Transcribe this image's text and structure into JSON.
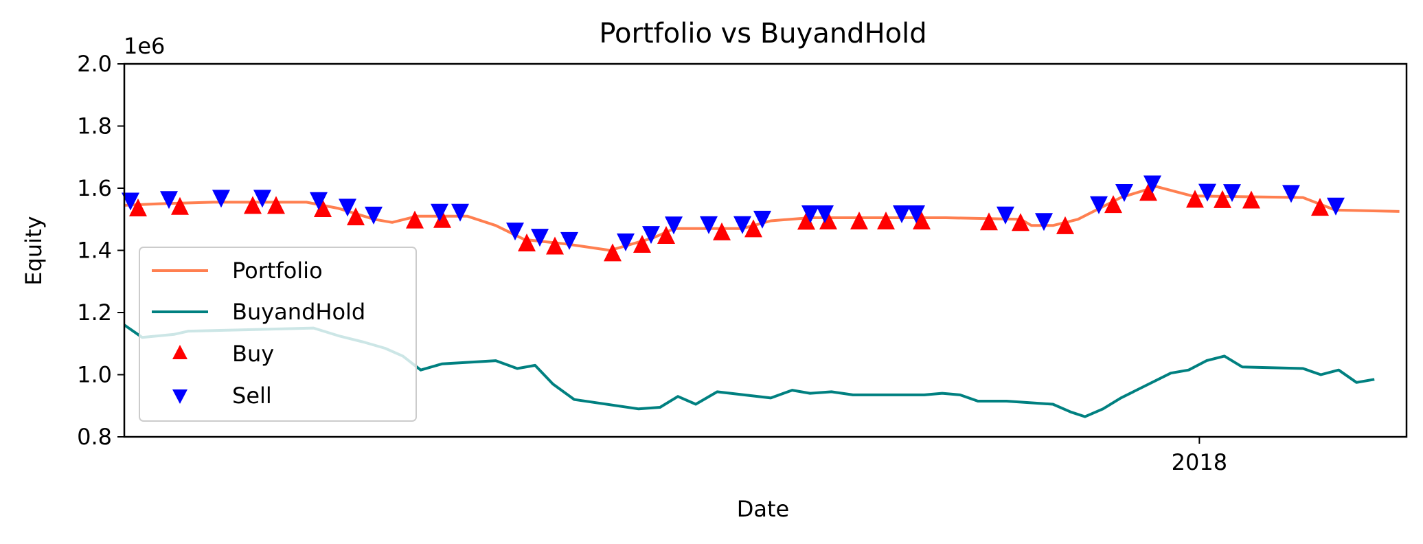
{
  "chart_data": {
    "type": "line",
    "title": "Portfolio vs BuyandHold",
    "xlabel": "Date",
    "ylabel": "Equity",
    "y_offset_text": "1e6",
    "ylim": [
      800000,
      2000000
    ],
    "y_ticks": [
      800000,
      1000000,
      1200000,
      1400000,
      1600000,
      1800000,
      2000000
    ],
    "y_tick_labels": [
      "0.8",
      "1.0",
      "1.2",
      "1.4",
      "1.6",
      "1.8",
      "2.0"
    ],
    "xlim": [
      "2017-03-06",
      "2018-02-28"
    ],
    "x_ticks": [
      {
        "value": "2018-01-01",
        "label": "2018"
      }
    ],
    "grid": false,
    "legend_position": "lower left",
    "series": [
      {
        "name": "Portfolio",
        "color": "#ff7f50",
        "points": [
          [
            "2017-03-06",
            1545000
          ],
          [
            "2017-03-16",
            1550000
          ],
          [
            "2017-03-31",
            1555000
          ],
          [
            "2017-04-12",
            1555000
          ],
          [
            "2017-04-26",
            1555000
          ],
          [
            "2017-05-05",
            1535000
          ],
          [
            "2017-05-15",
            1500000
          ],
          [
            "2017-05-20",
            1490000
          ],
          [
            "2017-05-27",
            1510000
          ],
          [
            "2017-06-10",
            1510000
          ],
          [
            "2017-06-18",
            1480000
          ],
          [
            "2017-06-26",
            1435000
          ],
          [
            "2017-07-08",
            1420000
          ],
          [
            "2017-07-20",
            1400000
          ],
          [
            "2017-08-01",
            1440000
          ],
          [
            "2017-08-07",
            1470000
          ],
          [
            "2017-08-26",
            1470000
          ],
          [
            "2017-09-03",
            1495000
          ],
          [
            "2017-09-14",
            1505000
          ],
          [
            "2017-10-22",
            1505000
          ],
          [
            "2017-11-12",
            1500000
          ],
          [
            "2017-11-15",
            1480000
          ],
          [
            "2017-11-21",
            1480000
          ],
          [
            "2017-11-28",
            1500000
          ],
          [
            "2017-12-10",
            1570000
          ],
          [
            "2017-12-20",
            1605000
          ],
          [
            "2017-12-30",
            1575000
          ],
          [
            "2017-01-23",
            1575000
          ],
          [
            "2018-01-30",
            1570000
          ],
          [
            "2018-02-08",
            1530000
          ],
          [
            "2018-02-26",
            1525000
          ]
        ]
      },
      {
        "name": "BuyandHold",
        "color": "#008080",
        "points": [
          [
            "2017-03-06",
            1160000
          ],
          [
            "2017-03-11",
            1120000
          ],
          [
            "2017-03-20",
            1130000
          ],
          [
            "2017-03-24",
            1140000
          ],
          [
            "2017-04-28",
            1150000
          ],
          [
            "2017-05-05",
            1125000
          ],
          [
            "2017-05-12",
            1105000
          ],
          [
            "2017-05-18",
            1085000
          ],
          [
            "2017-05-23",
            1060000
          ],
          [
            "2017-05-28",
            1015000
          ],
          [
            "2017-06-03",
            1035000
          ],
          [
            "2017-06-18",
            1045000
          ],
          [
            "2017-06-24",
            1020000
          ],
          [
            "2017-06-29",
            1030000
          ],
          [
            "2017-07-04",
            970000
          ],
          [
            "2017-07-10",
            920000
          ],
          [
            "2017-07-28",
            890000
          ],
          [
            "2017-08-03",
            895000
          ],
          [
            "2017-08-08",
            930000
          ],
          [
            "2017-08-13",
            905000
          ],
          [
            "2017-08-19",
            945000
          ],
          [
            "2017-09-03",
            925000
          ],
          [
            "2017-09-09",
            950000
          ],
          [
            "2017-09-14",
            940000
          ],
          [
            "2017-09-20",
            945000
          ],
          [
            "2017-09-26",
            935000
          ],
          [
            "2017-10-16",
            935000
          ],
          [
            "2017-10-21",
            940000
          ],
          [
            "2017-10-26",
            935000
          ],
          [
            "2017-10-31",
            915000
          ],
          [
            "2017-11-08",
            915000
          ],
          [
            "2017-11-21",
            905000
          ],
          [
            "2017-11-26",
            880000
          ],
          [
            "2017-11-30",
            865000
          ],
          [
            "2017-12-05",
            890000
          ],
          [
            "2017-12-10",
            925000
          ],
          [
            "2017-12-24",
            1005000
          ],
          [
            "2017-12-29",
            1015000
          ],
          [
            "2018-01-03",
            1045000
          ],
          [
            "2018-01-08",
            1060000
          ],
          [
            "2018-01-13",
            1025000
          ],
          [
            "2018-01-30",
            1020000
          ],
          [
            "2018-02-04",
            1000000
          ],
          [
            "2018-02-09",
            1015000
          ],
          [
            "2018-02-14",
            975000
          ],
          [
            "2018-02-19",
            985000
          ]
        ]
      }
    ],
    "markers": [
      {
        "name": "Buy",
        "symbol": "triangle-up",
        "color": "#ff0000"
      },
      {
        "name": "Sell",
        "symbol": "triangle-down",
        "color": "#0000ff"
      }
    ]
  }
}
